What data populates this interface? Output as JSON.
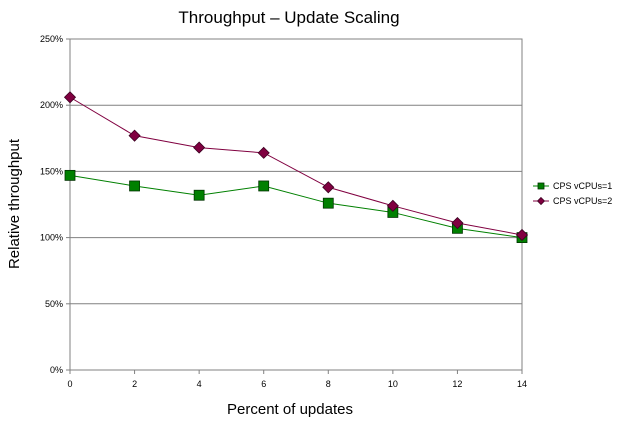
{
  "chart_data": {
    "type": "line",
    "title": "Throughput – Update Scaling",
    "xlabel": "Percent of updates",
    "ylabel": "Relative throughput",
    "x": [
      0,
      2,
      4,
      6,
      8,
      10,
      12,
      14
    ],
    "xlim": [
      0,
      14
    ],
    "ylim": [
      0,
      250
    ],
    "yticks": [
      "0%",
      "50%",
      "100%",
      "150%",
      "200%",
      "250%"
    ],
    "xticks": [
      "0",
      "2",
      "4",
      "6",
      "8",
      "10",
      "12",
      "14"
    ],
    "grid": "horizontal",
    "legend_position": "right",
    "series": [
      {
        "name": "CPS vCPUs=1",
        "values": [
          147,
          139,
          132,
          139,
          126,
          119,
          107,
          100
        ],
        "color": "#008000",
        "marker": "square"
      },
      {
        "name": "CPS vCPUs=2",
        "values": [
          206,
          177,
          168,
          164,
          138,
          124,
          111,
          102
        ],
        "color": "#800040",
        "marker": "diamond"
      }
    ]
  }
}
